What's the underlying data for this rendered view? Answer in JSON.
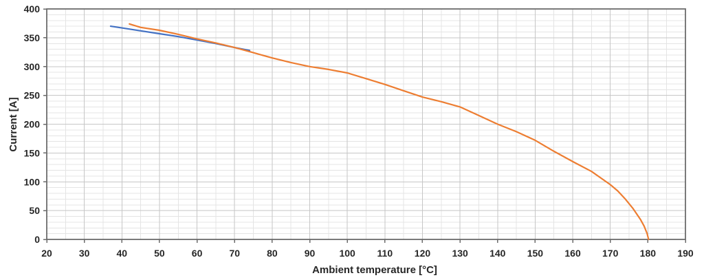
{
  "chart_data": {
    "type": "line",
    "title": "",
    "xlabel": "Ambient temperature [°C]",
    "ylabel": "Current [A]",
    "xlim": [
      20,
      190
    ],
    "ylim": [
      0,
      400
    ],
    "x_ticks": [
      20,
      30,
      40,
      50,
      60,
      70,
      80,
      90,
      100,
      110,
      120,
      130,
      140,
      150,
      160,
      170,
      180,
      190
    ],
    "y_ticks": [
      0,
      50,
      100,
      150,
      200,
      250,
      300,
      350,
      400
    ],
    "x_minor_step": 5,
    "y_minor_step": 10,
    "x_major_step": 10,
    "y_major_step": 50,
    "grid": "major+minor",
    "legend_position": "none",
    "series": [
      {
        "name": "curve-blue",
        "color": "#4472C4",
        "points": [
          [
            37,
            370
          ],
          [
            40,
            367
          ],
          [
            45,
            362
          ],
          [
            50,
            357
          ],
          [
            55,
            352
          ],
          [
            60,
            346
          ],
          [
            65,
            340
          ],
          [
            70,
            333
          ],
          [
            74,
            328
          ]
        ]
      },
      {
        "name": "curve-orange",
        "color": "#ED7D31",
        "points": [
          [
            42,
            374
          ],
          [
            45,
            368
          ],
          [
            50,
            363
          ],
          [
            55,
            356
          ],
          [
            60,
            348
          ],
          [
            65,
            341
          ],
          [
            70,
            333
          ],
          [
            75,
            324
          ],
          [
            80,
            315
          ],
          [
            85,
            307
          ],
          [
            90,
            300
          ],
          [
            95,
            295
          ],
          [
            100,
            289
          ],
          [
            105,
            279
          ],
          [
            110,
            269
          ],
          [
            115,
            258
          ],
          [
            120,
            247
          ],
          [
            125,
            239
          ],
          [
            130,
            230
          ],
          [
            135,
            215
          ],
          [
            140,
            200
          ],
          [
            145,
            187
          ],
          [
            150,
            172
          ],
          [
            155,
            153
          ],
          [
            160,
            135
          ],
          [
            165,
            118
          ],
          [
            170,
            95
          ],
          [
            172,
            84
          ],
          [
            174,
            70
          ],
          [
            176,
            54
          ],
          [
            178,
            35
          ],
          [
            179,
            23
          ],
          [
            179.8,
            10
          ],
          [
            180.2,
            0
          ]
        ]
      }
    ],
    "styles": {
      "background": "#ffffff",
      "grid_major_color": "#c6c6c6",
      "grid_minor_color": "#e4e4e4",
      "axis_color": "#6b6b6b",
      "text_color": "#262626",
      "line_width": 2.2
    }
  }
}
